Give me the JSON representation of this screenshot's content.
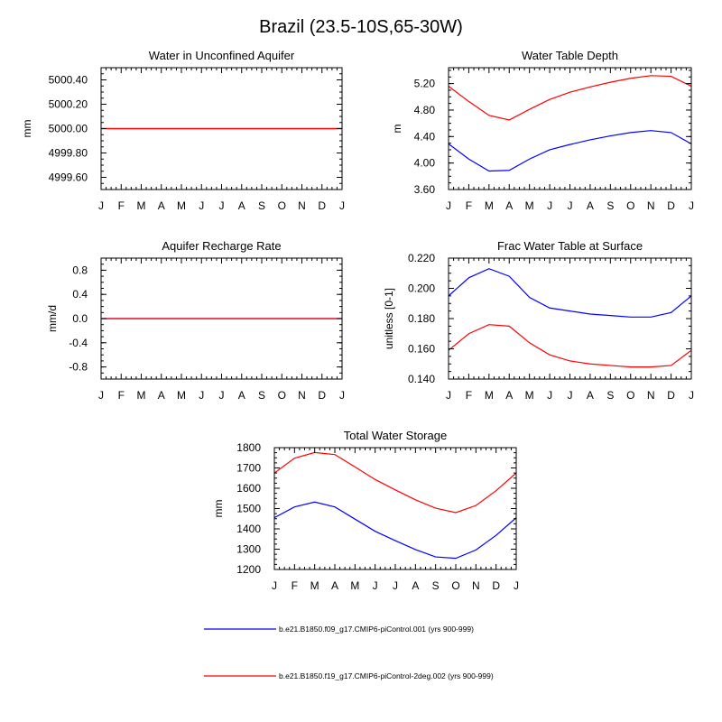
{
  "figure": {
    "title": "Brazil (23.5-10S,65-30W)",
    "colors": {
      "series1": "#0000ff",
      "series2": "#ff0000",
      "axis": "#000000"
    }
  },
  "chart_data": [
    {
      "type": "line",
      "title": "Water in Unconfined Aquifer",
      "ylabel": "mm",
      "xlabel": "",
      "x": [
        "J",
        "F",
        "M",
        "A",
        "M",
        "J",
        "J",
        "A",
        "S",
        "O",
        "N",
        "D",
        "J"
      ],
      "ylim": [
        4999.5,
        5000.5
      ],
      "yticks": [
        4999.6,
        4999.8,
        5000.0,
        5000.2,
        5000.4
      ],
      "ytick_labels": [
        "4999.60",
        "4999.80",
        "5000.00",
        "5000.20",
        "5000.40"
      ],
      "series": [
        {
          "color": "#0000ff",
          "values": [
            5000,
            5000,
            5000,
            5000,
            5000,
            5000,
            5000,
            5000,
            5000,
            5000,
            5000,
            5000,
            5000
          ]
        },
        {
          "color": "#ff0000",
          "values": [
            5000,
            5000,
            5000,
            5000,
            5000,
            5000,
            5000,
            5000,
            5000,
            5000,
            5000,
            5000,
            5000
          ]
        }
      ]
    },
    {
      "type": "line",
      "title": "Water Table Depth",
      "ylabel": "m",
      "xlabel": "",
      "x": [
        "J",
        "F",
        "M",
        "A",
        "M",
        "J",
        "J",
        "A",
        "S",
        "O",
        "N",
        "D",
        "J"
      ],
      "ylim": [
        3.6,
        5.44
      ],
      "yticks": [
        3.6,
        4.0,
        4.4,
        4.8,
        5.2
      ],
      "ytick_labels": [
        "3.60",
        "4.00",
        "4.40",
        "4.80",
        "5.20"
      ],
      "series": [
        {
          "color": "#0000ff",
          "values": [
            4.29,
            4.06,
            3.88,
            3.89,
            4.06,
            4.2,
            4.28,
            4.35,
            4.41,
            4.46,
            4.49,
            4.46,
            4.29
          ]
        },
        {
          "color": "#ff0000",
          "values": [
            5.16,
            4.93,
            4.72,
            4.65,
            4.81,
            4.96,
            5.07,
            5.15,
            5.22,
            5.28,
            5.32,
            5.31,
            5.16
          ]
        }
      ]
    },
    {
      "type": "line",
      "title": "Aquifer Recharge Rate",
      "ylabel": "mm/d",
      "xlabel": "",
      "x": [
        "J",
        "F",
        "M",
        "A",
        "M",
        "J",
        "J",
        "A",
        "S",
        "O",
        "N",
        "D",
        "J"
      ],
      "ylim": [
        -1.0,
        1.0
      ],
      "yticks": [
        -0.8,
        -0.4,
        0.0,
        0.4,
        0.8
      ],
      "ytick_labels": [
        "-0.8",
        "-0.4",
        "0.0",
        "0.4",
        "0.8"
      ],
      "series": [
        {
          "color": "#0000ff",
          "values": [
            0,
            0,
            0,
            0,
            0,
            0,
            0,
            0,
            0,
            0,
            0,
            0,
            0
          ]
        },
        {
          "color": "#ff0000",
          "values": [
            0,
            0,
            0,
            0,
            0,
            0,
            0,
            0,
            0,
            0,
            0,
            0,
            0
          ]
        }
      ]
    },
    {
      "type": "line",
      "title": "Frac Water Table at Surface",
      "ylabel": "unitless [0-1]",
      "xlabel": "",
      "x": [
        "J",
        "F",
        "M",
        "A",
        "M",
        "J",
        "J",
        "A",
        "S",
        "O",
        "N",
        "D",
        "J"
      ],
      "ylim": [
        0.14,
        0.22
      ],
      "yticks": [
        0.14,
        0.16,
        0.18,
        0.2,
        0.22
      ],
      "ytick_labels": [
        "0.140",
        "0.160",
        "0.180",
        "0.200",
        "0.220"
      ],
      "series": [
        {
          "color": "#0000ff",
          "values": [
            0.195,
            0.207,
            0.213,
            0.208,
            0.194,
            0.187,
            0.185,
            0.183,
            0.182,
            0.181,
            0.181,
            0.184,
            0.195
          ]
        },
        {
          "color": "#ff0000",
          "values": [
            0.159,
            0.17,
            0.176,
            0.175,
            0.164,
            0.156,
            0.152,
            0.15,
            0.149,
            0.148,
            0.148,
            0.149,
            0.159
          ]
        }
      ]
    },
    {
      "type": "line",
      "title": "Total Water Storage",
      "ylabel": "mm",
      "xlabel": "",
      "x": [
        "J",
        "F",
        "M",
        "A",
        "M",
        "J",
        "J",
        "A",
        "S",
        "O",
        "N",
        "D",
        "J"
      ],
      "ylim": [
        1200,
        1800
      ],
      "yticks": [
        1200,
        1300,
        1400,
        1500,
        1600,
        1700,
        1800
      ],
      "ytick_labels": [
        "1200",
        "1300",
        "1400",
        "1500",
        "1600",
        "1700",
        "1800"
      ],
      "series": [
        {
          "color": "#0000ff",
          "values": [
            1455,
            1508,
            1532,
            1508,
            1448,
            1388,
            1342,
            1298,
            1262,
            1255,
            1296,
            1368,
            1455
          ]
        },
        {
          "color": "#ff0000",
          "values": [
            1675,
            1748,
            1776,
            1766,
            1705,
            1643,
            1592,
            1543,
            1502,
            1480,
            1515,
            1588,
            1675
          ]
        }
      ]
    }
  ],
  "legend": {
    "placement": "bottom",
    "items": [
      {
        "color": "#0000ff",
        "label": "b.e21.B1850.f09_g17.CMIP6-piControl.001 (yrs 900-999)"
      },
      {
        "color": "#ff0000",
        "label": "b.e21.B1850.f19_g17.CMIP6-piControl-2deg.002 (yrs 900-999)"
      }
    ]
  }
}
